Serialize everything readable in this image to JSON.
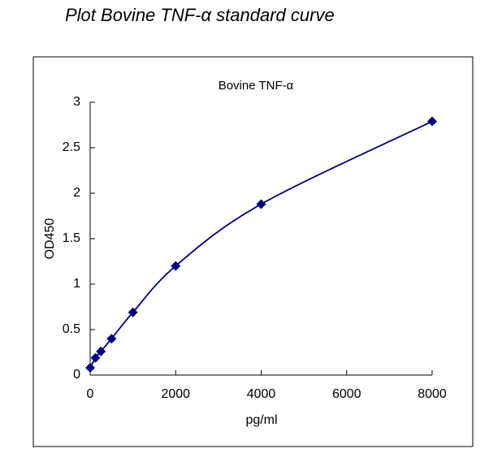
{
  "page_title": "Plot Bovine TNF-α standard curve",
  "chart_data": {
    "type": "scatter",
    "title": "Bovine  TNF-α",
    "x_label": "pg/ml",
    "y_label": "OD450",
    "series": [
      {
        "color": "#000080",
        "x": [
          0,
          125,
          250,
          500,
          1000,
          2000,
          4000,
          8000
        ],
        "values": [
          0.08,
          0.19,
          0.26,
          0.4,
          0.69,
          1.2,
          1.88,
          2.79
        ]
      }
    ],
    "smooth_line": true,
    "xlim": [
      0,
      8000
    ],
    "xticks": [
      0,
      2000,
      4000,
      6000,
      8000
    ],
    "ylim": [
      0,
      3
    ],
    "yticks": [
      0,
      0.5,
      1,
      1.5,
      2,
      2.5,
      3
    ],
    "grid": false
  }
}
